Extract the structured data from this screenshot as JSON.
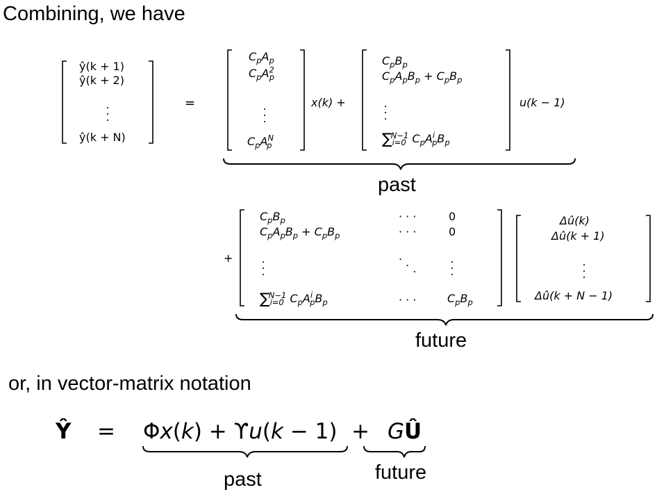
{
  "intro_text": "Combining, we have",
  "mid_text": "or, in vector-matrix notation",
  "labels": {
    "past_top": "past",
    "future_top": "future",
    "past_bottom": "past",
    "future_bottom": "future"
  },
  "symbols": {
    "equals": "=",
    "plus": "+",
    "x_k": "x(k) +",
    "u_km1": "u(k − 1)"
  },
  "y_vector": [
    "ŷ(k + 1)",
    "ŷ(k + 2)",
    "ŷ(k + N)"
  ],
  "du_vector": [
    "Δû(k)",
    "Δû(k + 1)",
    "Δû(k + N − 1)"
  ],
  "future_matrix": {
    "dots": "· · ·",
    "zero": "0"
  }
}
